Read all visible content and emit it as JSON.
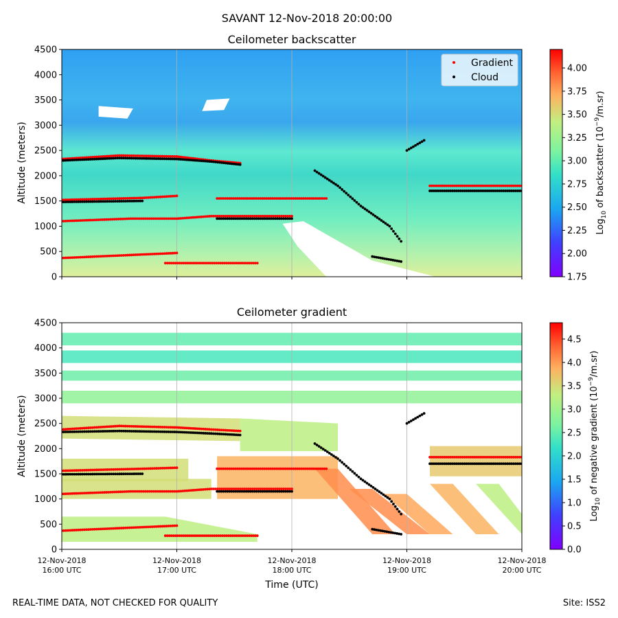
{
  "figure": {
    "suptitle": "SAVANT 12-Nov-2018 20:00:00",
    "footer_left": "REAL-TIME DATA, NOT CHECKED FOR QUALITY",
    "footer_right": "Site: ISS2",
    "xlabel": "Time (UTC)"
  },
  "chart_data": [
    {
      "type": "heatmap",
      "title": "Ceilometer backscatter",
      "ylabel": "Altitude (meters)",
      "xlabel": "",
      "xlim": [
        "12-Nov-2018 16:00 UTC",
        "12-Nov-2018 20:00 UTC"
      ],
      "ylim": [
        0,
        4500
      ],
      "yticks": [
        0,
        500,
        1000,
        1500,
        2000,
        2500,
        3000,
        3500,
        4000,
        4500
      ],
      "xticks": [],
      "grid": "vertical lines at hourly ticks",
      "colormap": "rainbow",
      "colorbar": {
        "label_pre": "Log",
        "label_sub": "10",
        "label_mid": " of backscatter (10",
        "label_sup": "−9",
        "label_post": "/m.sr)",
        "range": [
          1.75,
          4.2
        ],
        "ticks": [
          "1.75",
          "2.00",
          "2.25",
          "2.50",
          "2.75",
          "3.00",
          "3.25",
          "3.50",
          "3.75",
          "4.00"
        ]
      },
      "legend": {
        "placement": "top-right",
        "entries": [
          {
            "label": "Gradient",
            "color": "#ff0000"
          },
          {
            "label": "Cloud",
            "color": "#000000"
          }
        ]
      },
      "series": [
        {
          "name": "Gradient",
          "color": "#ff0000",
          "segments": [
            [
              [
                0.0,
                2330
              ],
              [
                0.5,
                2400
              ],
              [
                1.0,
                2380
              ],
              [
                1.3,
                2300
              ],
              [
                1.55,
                2250
              ]
            ],
            [
              [
                0.0,
                1520
              ],
              [
                0.7,
                1560
              ],
              [
                1.0,
                1600
              ]
            ],
            [
              [
                1.35,
                1550
              ],
              [
                2.3,
                1550
              ]
            ],
            [
              [
                3.2,
                1800
              ],
              [
                4.0,
                1800
              ]
            ],
            [
              [
                0.0,
                1100
              ],
              [
                0.6,
                1150
              ],
              [
                1.0,
                1150
              ],
              [
                1.3,
                1200
              ],
              [
                2.0,
                1200
              ]
            ],
            [
              [
                0.0,
                370
              ],
              [
                0.5,
                420
              ],
              [
                1.0,
                470
              ]
            ],
            [
              [
                0.9,
                270
              ],
              [
                1.7,
                270
              ]
            ]
          ]
        },
        {
          "name": "Cloud",
          "color": "#000000",
          "segments": [
            [
              [
                0.0,
                2300
              ],
              [
                0.5,
                2350
              ],
              [
                1.0,
                2330
              ],
              [
                1.3,
                2280
              ],
              [
                1.55,
                2220
              ]
            ],
            [
              [
                0.0,
                1480
              ],
              [
                0.7,
                1500
              ]
            ],
            [
              [
                1.35,
                1150
              ],
              [
                2.0,
                1150
              ]
            ],
            [
              [
                3.2,
                1700
              ],
              [
                4.0,
                1700
              ]
            ],
            [
              [
                2.2,
                2100
              ],
              [
                2.4,
                1800
              ],
              [
                2.6,
                1400
              ],
              [
                2.85,
                1000
              ],
              [
                2.95,
                700
              ]
            ],
            [
              [
                2.7,
                400
              ],
              [
                2.95,
                300
              ]
            ],
            [
              [
                3.0,
                2500
              ],
              [
                3.15,
                2700
              ]
            ]
          ]
        }
      ],
      "missing_regions": [
        [
          [
            1.92,
            1050
          ],
          [
            2.1,
            1100
          ],
          [
            2.7,
            320
          ],
          [
            3.25,
            0
          ],
          [
            2.3,
            0
          ],
          [
            2.05,
            600
          ]
        ],
        [
          [
            0.32,
            3380
          ],
          [
            0.62,
            3330
          ],
          [
            0.57,
            3130
          ],
          [
            0.32,
            3170
          ]
        ],
        [
          [
            1.26,
            3500
          ],
          [
            1.46,
            3530
          ],
          [
            1.41,
            3300
          ],
          [
            1.22,
            3280
          ]
        ]
      ]
    },
    {
      "type": "heatmap",
      "title": "Ceilometer gradient",
      "ylabel": "Altitude (meters)",
      "xlabel": "Time (UTC)",
      "xlim": [
        "12-Nov-2018 16:00 UTC",
        "12-Nov-2018 20:00 UTC"
      ],
      "ylim": [
        0,
        4500
      ],
      "yticks": [
        0,
        500,
        1000,
        1500,
        2000,
        2500,
        3000,
        3500,
        4000,
        4500
      ],
      "xticks": [
        {
          "line1": "12-Nov-2018",
          "line2": "16:00 UTC"
        },
        {
          "line1": "12-Nov-2018",
          "line2": "17:00 UTC"
        },
        {
          "line1": "12-Nov-2018",
          "line2": "18:00 UTC"
        },
        {
          "line1": "12-Nov-2018",
          "line2": "19:00 UTC"
        },
        {
          "line1": "12-Nov-2018",
          "line2": "20:00 UTC"
        }
      ],
      "grid": "vertical lines at hourly ticks",
      "colormap": "rainbow",
      "colorbar": {
        "label_pre": "Log",
        "label_sub": "10",
        "label_mid": " of negative gradient (10",
        "label_sup": "−9",
        "label_post": "/m.sr)",
        "range": [
          0.0,
          4.85
        ],
        "ticks": [
          "0.0",
          "0.5",
          "1.0",
          "1.5",
          "2.0",
          "2.5",
          "3.0",
          "3.5",
          "4.0",
          "4.5"
        ]
      },
      "series": [
        {
          "name": "Gradient",
          "color": "#ff0000",
          "segments": [
            [
              [
                0.0,
                2380
              ],
              [
                0.5,
                2450
              ],
              [
                1.0,
                2420
              ],
              [
                1.3,
                2380
              ],
              [
                1.55,
                2350
              ]
            ],
            [
              [
                0.0,
                1560
              ],
              [
                0.7,
                1600
              ],
              [
                1.0,
                1620
              ]
            ],
            [
              [
                1.35,
                1600
              ],
              [
                2.3,
                1600
              ]
            ],
            [
              [
                3.2,
                1830
              ],
              [
                4.0,
                1830
              ]
            ],
            [
              [
                0.0,
                1100
              ],
              [
                0.6,
                1150
              ],
              [
                1.0,
                1150
              ],
              [
                1.3,
                1200
              ],
              [
                2.0,
                1200
              ]
            ],
            [
              [
                0.0,
                370
              ],
              [
                0.5,
                420
              ],
              [
                1.0,
                470
              ]
            ],
            [
              [
                0.9,
                270
              ],
              [
                1.7,
                270
              ]
            ]
          ]
        },
        {
          "name": "Cloud",
          "color": "#000000",
          "segments": [
            [
              [
                0.0,
                2330
              ],
              [
                0.5,
                2350
              ],
              [
                1.0,
                2330
              ],
              [
                1.3,
                2300
              ],
              [
                1.55,
                2270
              ]
            ],
            [
              [
                0.0,
                1490
              ],
              [
                0.7,
                1500
              ]
            ],
            [
              [
                1.35,
                1150
              ],
              [
                2.0,
                1150
              ]
            ],
            [
              [
                3.2,
                1700
              ],
              [
                4.0,
                1700
              ]
            ],
            [
              [
                2.2,
                2100
              ],
              [
                2.4,
                1800
              ],
              [
                2.6,
                1400
              ],
              [
                2.85,
                1000
              ],
              [
                2.95,
                700
              ]
            ],
            [
              [
                2.7,
                400
              ],
              [
                2.95,
                300
              ]
            ],
            [
              [
                3.0,
                2500
              ],
              [
                3.15,
                2700
              ]
            ]
          ]
        }
      ],
      "band_regions": [
        {
          "v": 2.2,
          "pts": [
            [
              0.0,
              4300
            ],
            [
              4.0,
              4300
            ],
            [
              4.0,
              4050
            ],
            [
              0.0,
              4050
            ]
          ]
        },
        {
          "v": 2.0,
          "pts": [
            [
              0.0,
              3950
            ],
            [
              4.0,
              3950
            ],
            [
              4.0,
              3700
            ],
            [
              0.0,
              3700
            ]
          ]
        },
        {
          "v": 2.3,
          "pts": [
            [
              0.0,
              3550
            ],
            [
              4.0,
              3550
            ],
            [
              4.0,
              3350
            ],
            [
              0.0,
              3350
            ]
          ]
        },
        {
          "v": 2.6,
          "pts": [
            [
              0.0,
              3150
            ],
            [
              4.0,
              3150
            ],
            [
              4.0,
              2900
            ],
            [
              0.0,
              2900
            ]
          ]
        },
        {
          "v": 3.2,
          "pts": [
            [
              0.0,
              2650
            ],
            [
              1.55,
              2600
            ],
            [
              1.55,
              2150
            ],
            [
              0.0,
              2200
            ]
          ]
        },
        {
          "v": 3.0,
          "pts": [
            [
              1.55,
              2600
            ],
            [
              2.4,
              2500
            ],
            [
              2.4,
              1950
            ],
            [
              1.55,
              1950
            ]
          ]
        },
        {
          "v": 3.2,
          "pts": [
            [
              0.0,
              1800
            ],
            [
              1.1,
              1800
            ],
            [
              1.1,
              1350
            ],
            [
              0.0,
              1350
            ]
          ]
        },
        {
          "v": 3.6,
          "pts": [
            [
              1.35,
              1850
            ],
            [
              2.4,
              1850
            ],
            [
              2.4,
              1000
            ],
            [
              1.35,
              1000
            ]
          ]
        },
        {
          "v": 3.4,
          "pts": [
            [
              3.2,
              2050
            ],
            [
              4.0,
              2050
            ],
            [
              4.0,
              1450
            ],
            [
              3.2,
              1450
            ]
          ]
        },
        {
          "v": 3.2,
          "pts": [
            [
              0.0,
              1400
            ],
            [
              1.3,
              1400
            ],
            [
              1.3,
              1000
            ],
            [
              0.0,
              1000
            ]
          ]
        },
        {
          "v": 3.0,
          "pts": [
            [
              0.0,
              650
            ],
            [
              0.9,
              650
            ],
            [
              1.7,
              300
            ],
            [
              1.7,
              150
            ],
            [
              0.0,
              150
            ]
          ]
        },
        {
          "v": 3.9,
          "pts": [
            [
              2.2,
              1600
            ],
            [
              2.4,
              1600
            ],
            [
              2.9,
              300
            ],
            [
              2.7,
              300
            ]
          ]
        },
        {
          "v": 3.9,
          "pts": [
            [
              2.5,
              1200
            ],
            [
              2.7,
              1200
            ],
            [
              3.2,
              300
            ],
            [
              3.0,
              300
            ]
          ]
        },
        {
          "v": 3.7,
          "pts": [
            [
              2.8,
              1100
            ],
            [
              3.0,
              1100
            ],
            [
              3.4,
              300
            ],
            [
              3.2,
              300
            ]
          ]
        },
        {
          "v": 3.6,
          "pts": [
            [
              3.2,
              1300
            ],
            [
              3.4,
              1300
            ],
            [
              3.8,
              300
            ],
            [
              3.6,
              300
            ]
          ]
        },
        {
          "v": 3.0,
          "pts": [
            [
              3.6,
              1300
            ],
            [
              3.8,
              1300
            ],
            [
              4.0,
              700
            ],
            [
              4.0,
              300
            ]
          ]
        }
      ]
    }
  ]
}
